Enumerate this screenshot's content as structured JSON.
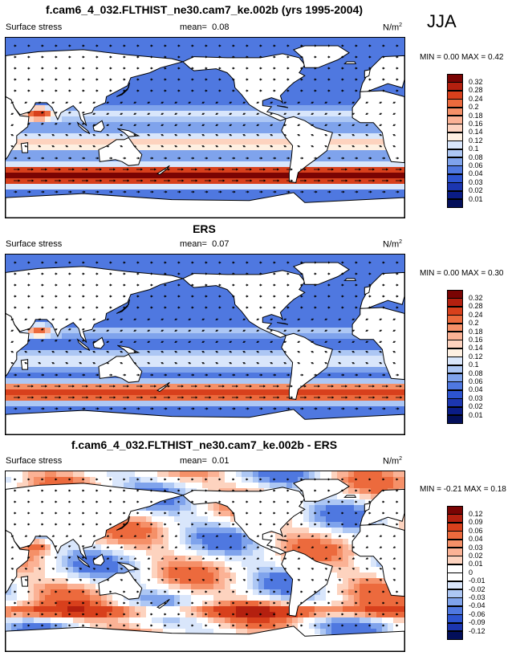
{
  "season": "JJA",
  "panels": [
    {
      "title": "f.cam6_4_032.FLTHIST_ne30.cam7_ke.002b (yrs 1995-2004)",
      "variable": "Surface stress",
      "mean_label": "mean=",
      "mean": "0.08",
      "units": "N/m",
      "units_sup": "2",
      "stats": "MIN =   0.00 MAX =   0.42",
      "colorbar": [
        "0.32",
        "0.28",
        "0.24",
        "0.2",
        "0.18",
        "0.16",
        "0.14",
        "0.12",
        "0.1",
        "0.08",
        "0.06",
        "0.04",
        "0.03",
        "0.02",
        "0.01"
      ]
    },
    {
      "title": "ERS",
      "variable": "Surface stress",
      "mean_label": "mean=",
      "mean": "0.07",
      "units": "N/m",
      "units_sup": "2",
      "stats": "MIN =   0.00 MAX =   0.30",
      "colorbar": [
        "0.32",
        "0.28",
        "0.24",
        "0.2",
        "0.18",
        "0.16",
        "0.14",
        "0.12",
        "0.1",
        "0.08",
        "0.06",
        "0.04",
        "0.03",
        "0.02",
        "0.01"
      ]
    },
    {
      "title": "f.cam6_4_032.FLTHIST_ne30.cam7_ke.002b - ERS",
      "variable": "Surface stress",
      "mean_label": "mean=",
      "mean": "0.01",
      "units": "N/m",
      "units_sup": "2",
      "stats": "MIN =  -0.21 MAX =   0.18",
      "colorbar": [
        "0.12",
        "0.09",
        "0.06",
        "0.04",
        "0.03",
        "0.02",
        "0.01",
        "0",
        "-0.01",
        "-0.02",
        "-0.03",
        "-0.04",
        "-0.06",
        "-0.09",
        "-0.12"
      ]
    }
  ],
  "colors": {
    "mean_field_palette": [
      "#7a0403",
      "#b4200f",
      "#d8401c",
      "#ec6a3d",
      "#f59068",
      "#fbb295",
      "#fdd3bf",
      "#fef0e2",
      "#d9e6fb",
      "#adc7f4",
      "#7fa3ec",
      "#4f78e0",
      "#2d54d0",
      "#1c36b0",
      "#0a1c86",
      "#030f5a"
    ],
    "diff_palette": [
      "#7a0403",
      "#b4200f",
      "#d8401c",
      "#ec6a3d",
      "#f59068",
      "#fbb295",
      "#fdd3bf",
      "#ffffff",
      "#ffffff",
      "#d9e6fb",
      "#adc7f4",
      "#7fa3ec",
      "#4f78e0",
      "#2d54d0",
      "#1c36b0",
      "#030f5a"
    ],
    "land": "#ffffff",
    "coastline": "#000000"
  }
}
